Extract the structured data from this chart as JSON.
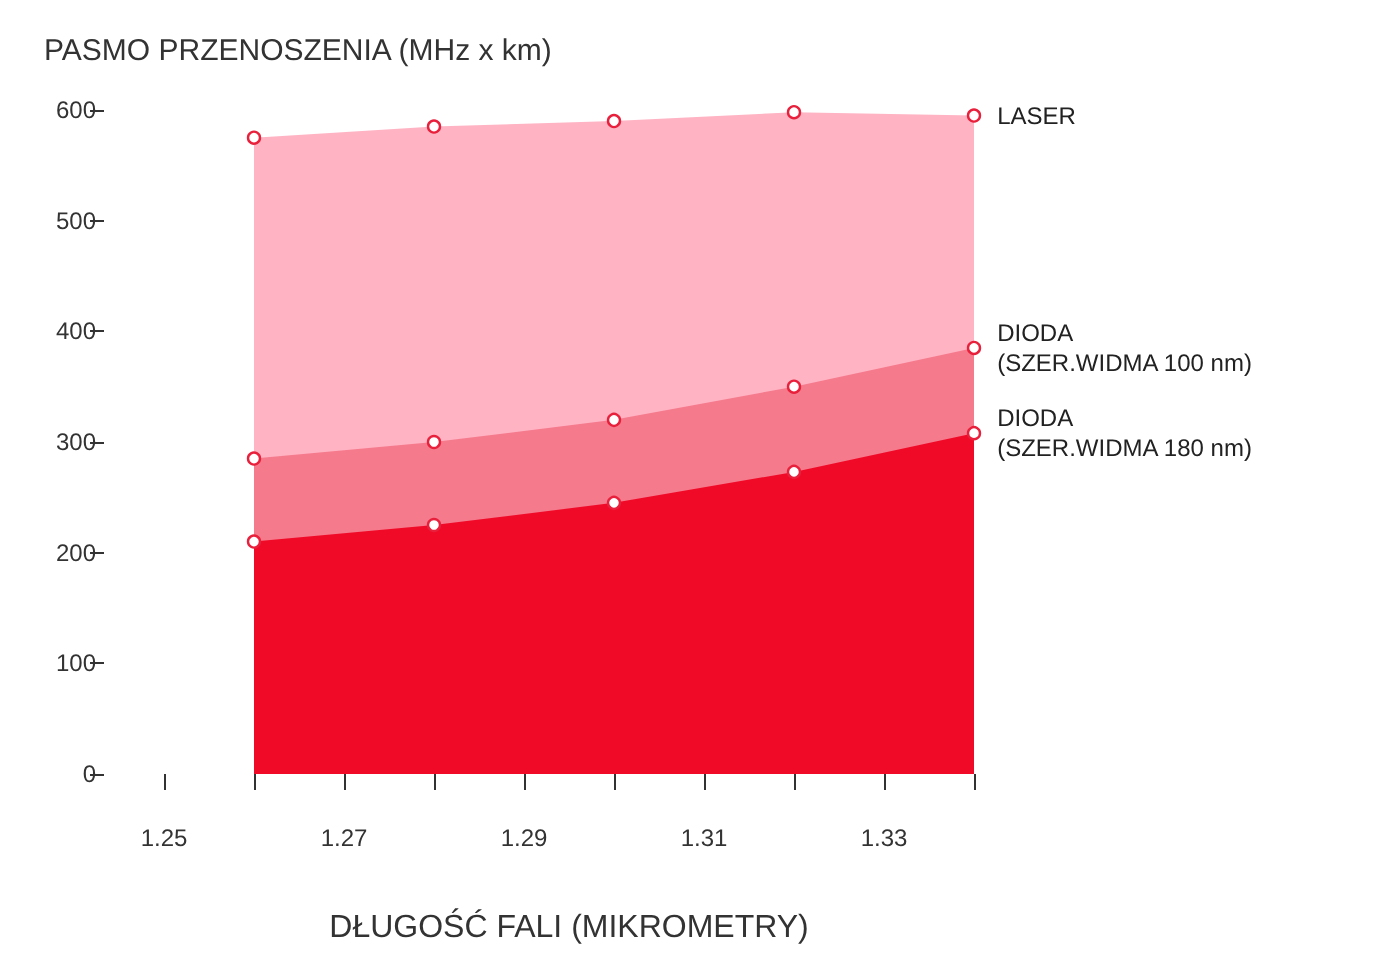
{
  "chart_data": {
    "type": "area",
    "ylabel": "PASMO PRZENOSZENIA (MHz x km)",
    "xlabel": "DŁUGOŚĆ FALI (MIKROMETRY)",
    "x": [
      1.26,
      1.28,
      1.3,
      1.32,
      1.34
    ],
    "series": [
      {
        "name": "LASER",
        "color": "#ffb3c3",
        "values": [
          575,
          585,
          590,
          598,
          595
        ]
      },
      {
        "name": "DIODA (SZER.WIDMA 100 nm)",
        "color": "#f57a8c",
        "values": [
          285,
          300,
          320,
          350,
          385
        ]
      },
      {
        "name": "DIODA (SZER.WIDMA 180 nm)",
        "color": "#f00a28",
        "values": [
          210,
          225,
          245,
          273,
          308
        ]
      }
    ],
    "xlim": [
      1.25,
      1.34
    ],
    "xticks": [
      1.25,
      {
        "value": 1.26,
        "label": null
      },
      1.27,
      {
        "value": 1.28,
        "label": null
      },
      1.29,
      {
        "value": 1.3,
        "label": null
      },
      1.31,
      {
        "value": 1.32,
        "label": null
      },
      1.33,
      {
        "value": 1.34,
        "label": null
      }
    ],
    "ylim": [
      0,
      600
    ],
    "yticks": [
      0,
      100,
      200,
      300,
      400,
      500,
      600
    ],
    "grid": false,
    "legend": false,
    "marker": "circle"
  }
}
